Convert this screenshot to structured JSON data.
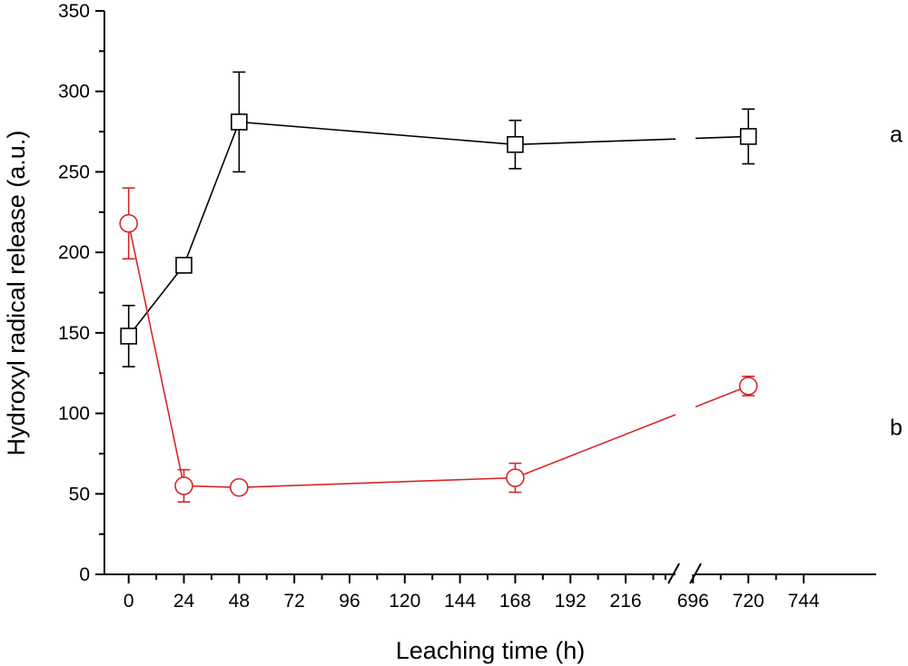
{
  "chart_data": {
    "type": "line",
    "title": "",
    "xlabel": "Leaching time (h)",
    "ylabel": "Hydroxyl radical release (a.u.)",
    "ylim": [
      0,
      350
    ],
    "yticks": [
      0,
      50,
      100,
      150,
      200,
      250,
      300,
      350
    ],
    "xticks_left": [
      0,
      24,
      48,
      72,
      96,
      120,
      144,
      168,
      192,
      216
    ],
    "xticks_right": [
      696,
      720,
      744
    ],
    "xlim_left": [
      -10,
      240
    ],
    "xlim_right": [
      672,
      750
    ],
    "axis_break": "between 240 and 672",
    "grid": false,
    "legend": "none",
    "series": [
      {
        "label": "a",
        "marker": "square",
        "color": "#000000",
        "x": [
          0,
          24,
          48,
          168,
          720
        ],
        "y": [
          148,
          192,
          281,
          267,
          272
        ],
        "err": [
          19,
          0,
          31,
          15,
          17
        ]
      },
      {
        "label": "b",
        "marker": "circle",
        "color": "#d62728",
        "x": [
          0,
          24,
          48,
          168,
          720
        ],
        "y": [
          218,
          55,
          54,
          60,
          117
        ],
        "err": [
          22,
          10,
          0,
          9,
          6
        ]
      }
    ]
  }
}
